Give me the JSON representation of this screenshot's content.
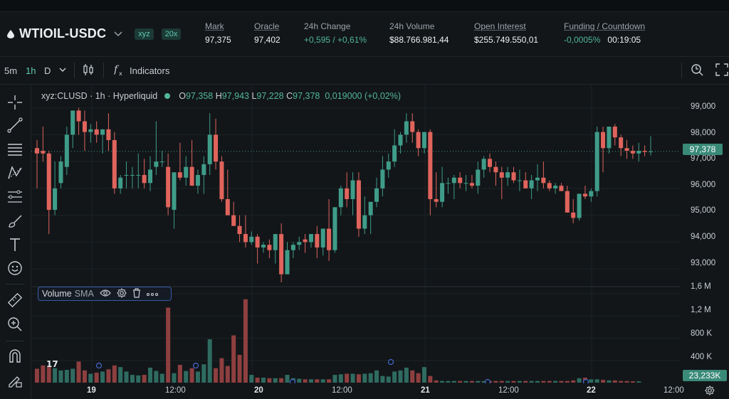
{
  "market": {
    "pair": "WTIOIL-USDC",
    "badge_exchange": "xyz",
    "badge_leverage": "20x"
  },
  "stats": [
    {
      "label": "Mark",
      "value": "97,375",
      "positive": false
    },
    {
      "label": "Oracle",
      "value": "97,402",
      "positive": false
    },
    {
      "label": "24h Change",
      "value": "+0,595 / +0,61%",
      "positive": true
    },
    {
      "label": "24h Volume",
      "value": "$88.766.981,44",
      "positive": false
    },
    {
      "label": "Open Interest",
      "value": "$255.749.550,01",
      "positive": false
    },
    {
      "label": "Funding / Countdown",
      "value_a": "-0,0005%",
      "value_b": "00:19:05"
    }
  ],
  "toolbar": {
    "intervals": [
      "5m",
      "1h",
      "D"
    ],
    "active_interval": "1h",
    "indicators_label": "Indicators"
  },
  "legend": {
    "symbol": "xyz:CLUSD · 1h · Hyperliquid",
    "o_label": "O",
    "o": "97,358",
    "h_label": "H",
    "h": "97,943",
    "l_label": "L",
    "l": "97,228",
    "c_label": "C",
    "c": "97,378",
    "change": "0,019000 (+0,02%)"
  },
  "volume_pane": {
    "title": "Volume",
    "sma": "SMA",
    "last_value": "23,233K"
  },
  "price_axis": [
    "99,000",
    "98,000",
    "97,000",
    "96,000",
    "95,000",
    "94,000",
    "93,000"
  ],
  "volume_axis": [
    "1,6 M",
    "1,2 M",
    "800 K",
    "400 K"
  ],
  "last_price": "97,378",
  "time_axis": [
    {
      "label": "19",
      "bold": true
    },
    {
      "label": "12:00",
      "bold": false
    },
    {
      "label": "20",
      "bold": true
    },
    {
      "label": "12:00",
      "bold": false
    },
    {
      "label": "21",
      "bold": true
    },
    {
      "label": "12:00",
      "bold": false
    },
    {
      "label": "22",
      "bold": true
    },
    {
      "label": "12:00",
      "bold": false
    }
  ],
  "colors": {
    "up": "#3f9c88",
    "down": "#e0645c",
    "bg": "#121619",
    "accent": "#5ec9b1"
  },
  "chart_data": {
    "type": "candlestick",
    "ylim": [
      92500,
      99600
    ],
    "volume_ylim": [
      0,
      1650000
    ],
    "candles_ohlc": [
      [
        97500,
        97800,
        96000,
        97300
      ],
      [
        97400,
        98300,
        97000,
        97300
      ],
      [
        97300,
        97400,
        94300,
        95200
      ],
      [
        95200,
        97000,
        95000,
        96000
      ],
      [
        96200,
        97200,
        96000,
        97000
      ],
      [
        96800,
        98300,
        96500,
        98000
      ],
      [
        98000,
        98700,
        97500,
        98900
      ],
      [
        98900,
        99000,
        98000,
        98500
      ],
      [
        98500,
        98900,
        97400,
        98100
      ],
      [
        98100,
        98400,
        97700,
        98200
      ],
      [
        98200,
        98500,
        97700,
        98000
      ],
      [
        98000,
        98200,
        97300,
        98200
      ],
      [
        98200,
        98800,
        97400,
        97800
      ],
      [
        97800,
        98100,
        95800,
        96000
      ],
      [
        96000,
        96500,
        95800,
        96400
      ],
      [
        96500,
        97000,
        96000,
        96500
      ],
      [
        96500,
        96800,
        96000,
        96500
      ],
      [
        96500,
        97300,
        96000,
        96500
      ],
      [
        96500,
        97100,
        96000,
        96200
      ],
      [
        96200,
        97200,
        95900,
        96700
      ],
      [
        96800,
        98500,
        96500,
        97000
      ],
      [
        97000,
        97400,
        96800,
        97000
      ],
      [
        96800,
        97300,
        95000,
        95300
      ],
      [
        95200,
        96600,
        94500,
        96600
      ],
      [
        96600,
        97700,
        96300,
        96400
      ],
      [
        96400,
        97200,
        96100,
        96800
      ],
      [
        96800,
        97800,
        96200,
        96100
      ],
      [
        96100,
        96700,
        95800,
        96500
      ],
      [
        96500,
        97200,
        95800,
        96900
      ],
      [
        96900,
        98800,
        96500,
        98000
      ],
      [
        98000,
        98600,
        96700,
        97000
      ],
      [
        97000,
        97200,
        95500,
        95600
      ],
      [
        95600,
        96700,
        95000,
        95000
      ],
      [
        95000,
        95500,
        94700,
        94600
      ],
      [
        94600,
        95000,
        94000,
        94300
      ],
      [
        94300,
        95000,
        93800,
        94000
      ],
      [
        94000,
        94400,
        93900,
        94200
      ],
      [
        94200,
        94300,
        93200,
        93800
      ],
      [
        93800,
        94000,
        93600,
        93900
      ],
      [
        93900,
        94100,
        93400,
        93700
      ],
      [
        93700,
        94200,
        93200,
        94300
      ],
      [
        94300,
        94700,
        92500,
        92800
      ],
      [
        92800,
        94000,
        93200,
        93700
      ],
      [
        93700,
        94000,
        93400,
        93900
      ],
      [
        93900,
        94200,
        93700,
        94000
      ],
      [
        94100,
        94300,
        93600,
        94000
      ],
      [
        94000,
        94300,
        93800,
        94300
      ],
      [
        94300,
        94600,
        93400,
        93800
      ],
      [
        93800,
        94300,
        93500,
        94500
      ],
      [
        94500,
        95600,
        93300,
        93700
      ],
      [
        93700,
        94100,
        93600,
        95300
      ],
      [
        95300,
        96100,
        95000,
        96000
      ],
      [
        96000,
        96600,
        95300,
        95600
      ],
      [
        95600,
        96600,
        95000,
        96300
      ],
      [
        96300,
        96600,
        94200,
        94500
      ],
      [
        94500,
        95700,
        94300,
        95000
      ],
      [
        95000,
        95300,
        94300,
        95500
      ],
      [
        95500,
        96400,
        95300,
        96000
      ],
      [
        96000,
        97200,
        95700,
        96700
      ],
      [
        96700,
        97300,
        96400,
        97000
      ],
      [
        97000,
        98200,
        96800,
        97600
      ],
      [
        97600,
        98100,
        97300,
        98000
      ],
      [
        98000,
        98800,
        97700,
        98500
      ],
      [
        98500,
        98800,
        97700,
        98100
      ],
      [
        98100,
        98200,
        97200,
        97500
      ],
      [
        97500,
        98000,
        97300,
        98100
      ],
      [
        98100,
        98200,
        95000,
        95600
      ],
      [
        95600,
        96600,
        95300,
        95500
      ],
      [
        95500,
        96800,
        95300,
        96200
      ],
      [
        96200,
        96400,
        95800,
        96200
      ],
      [
        96200,
        96500,
        95600,
        96400
      ],
      [
        96400,
        96600,
        96000,
        96200
      ],
      [
        96200,
        96500,
        95900,
        96200
      ],
      [
        96200,
        96500,
        96000,
        96100
      ],
      [
        96100,
        97000,
        95800,
        96700
      ],
      [
        96700,
        97200,
        96400,
        97100
      ],
      [
        97100,
        97300,
        96600,
        96800
      ],
      [
        96800,
        97000,
        96100,
        96600
      ],
      [
        96600,
        96800,
        95600,
        96400
      ],
      [
        96400,
        96800,
        96100,
        96600
      ],
      [
        96600,
        96800,
        96200,
        96300
      ],
      [
        96300,
        96700,
        95900,
        96300
      ],
      [
        96300,
        96600,
        96100,
        96000
      ],
      [
        96000,
        96500,
        95600,
        96300
      ],
      [
        96300,
        96900,
        95900,
        96400
      ],
      [
        96400,
        97000,
        96000,
        96200
      ],
      [
        96200,
        96300,
        95900,
        96000
      ],
      [
        96000,
        96200,
        95800,
        96100
      ],
      [
        96100,
        96200,
        95900,
        95900
      ],
      [
        95900,
        96100,
        95100,
        95100
      ],
      [
        95100,
        95600,
        94700,
        94900
      ],
      [
        94900,
        95800,
        94800,
        95800
      ],
      [
        95800,
        96100,
        95600,
        95700
      ],
      [
        95700,
        96000,
        95500,
        95900
      ],
      [
        95900,
        98300,
        95700,
        98100
      ],
      [
        98100,
        98300,
        96600,
        97500
      ],
      [
        97500,
        98300,
        97300,
        98300
      ],
      [
        98300,
        98400,
        97600,
        97900
      ],
      [
        97900,
        98000,
        97200,
        97500
      ],
      [
        97500,
        97800,
        97100,
        97400
      ],
      [
        97400,
        97600,
        97100,
        97300
      ],
      [
        97300,
        97700,
        97000,
        97400
      ],
      [
        97400,
        97600,
        97200,
        97358
      ],
      [
        97358,
        97943,
        97228,
        97378
      ]
    ],
    "volume": [
      250000,
      310000,
      280000,
      260000,
      220000,
      230000,
      250000,
      380000,
      220000,
      160000,
      180000,
      200000,
      240000,
      310000,
      280000,
      200000,
      140000,
      130000,
      140000,
      270000,
      210000,
      160000,
      1350000,
      170000,
      320000,
      210000,
      260000,
      200000,
      330000,
      780000,
      260000,
      440000,
      300000,
      850000,
      500000,
      1500000,
      140000,
      90000,
      90000,
      80000,
      80000,
      80000,
      140000,
      80000,
      70000,
      60000,
      60000,
      60000,
      60000,
      60000,
      140000,
      150000,
      160000,
      160000,
      150000,
      160000,
      170000,
      220000,
      120000,
      110000,
      200000,
      220000,
      270000,
      220000,
      170000,
      280000,
      120000,
      40000,
      30000,
      30000,
      30000,
      30000,
      30000,
      30000,
      30000,
      30000,
      30000,
      30000,
      30000,
      30000,
      30000,
      30000,
      30000,
      30000,
      30000,
      30000,
      30000,
      30000,
      30000,
      30000,
      40000,
      80000,
      90000,
      60000,
      60000,
      50000,
      40000,
      40000,
      30000,
      30000,
      25000,
      23233
    ]
  }
}
